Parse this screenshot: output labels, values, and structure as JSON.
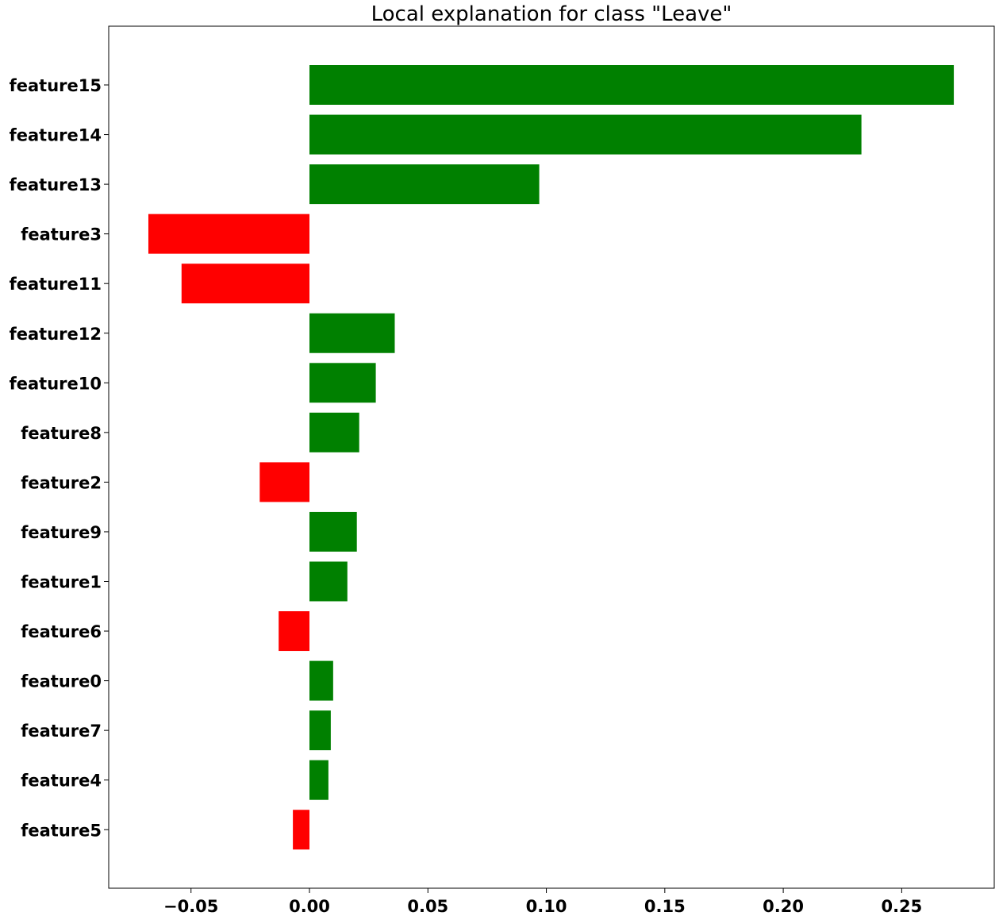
{
  "chart_data": {
    "type": "bar",
    "orientation": "horizontal",
    "title": "Local explanation for class \"Leave\"",
    "xlabel": "",
    "ylabel": "",
    "xlim": [
      -0.085,
      0.29
    ],
    "xticks": [
      -0.05,
      0.0,
      0.05,
      0.1,
      0.15,
      0.2,
      0.25
    ],
    "xtick_labels": [
      "−0.05",
      "0.00",
      "0.05",
      "0.10",
      "0.15",
      "0.20",
      "0.25"
    ],
    "categories": [
      "feature15",
      "feature14",
      "feature13",
      "feature3",
      "feature11",
      "feature12",
      "feature10",
      "feature8",
      "feature2",
      "feature9",
      "feature1",
      "feature6",
      "feature0",
      "feature7",
      "feature4",
      "feature5"
    ],
    "values": [
      0.272,
      0.233,
      0.097,
      -0.068,
      -0.054,
      0.036,
      0.028,
      0.021,
      -0.021,
      0.02,
      0.016,
      -0.013,
      0.01,
      0.009,
      0.008,
      -0.007
    ],
    "colors": {
      "positive": "#008000",
      "negative": "#ff0000"
    },
    "grid": false,
    "legend": "none"
  }
}
